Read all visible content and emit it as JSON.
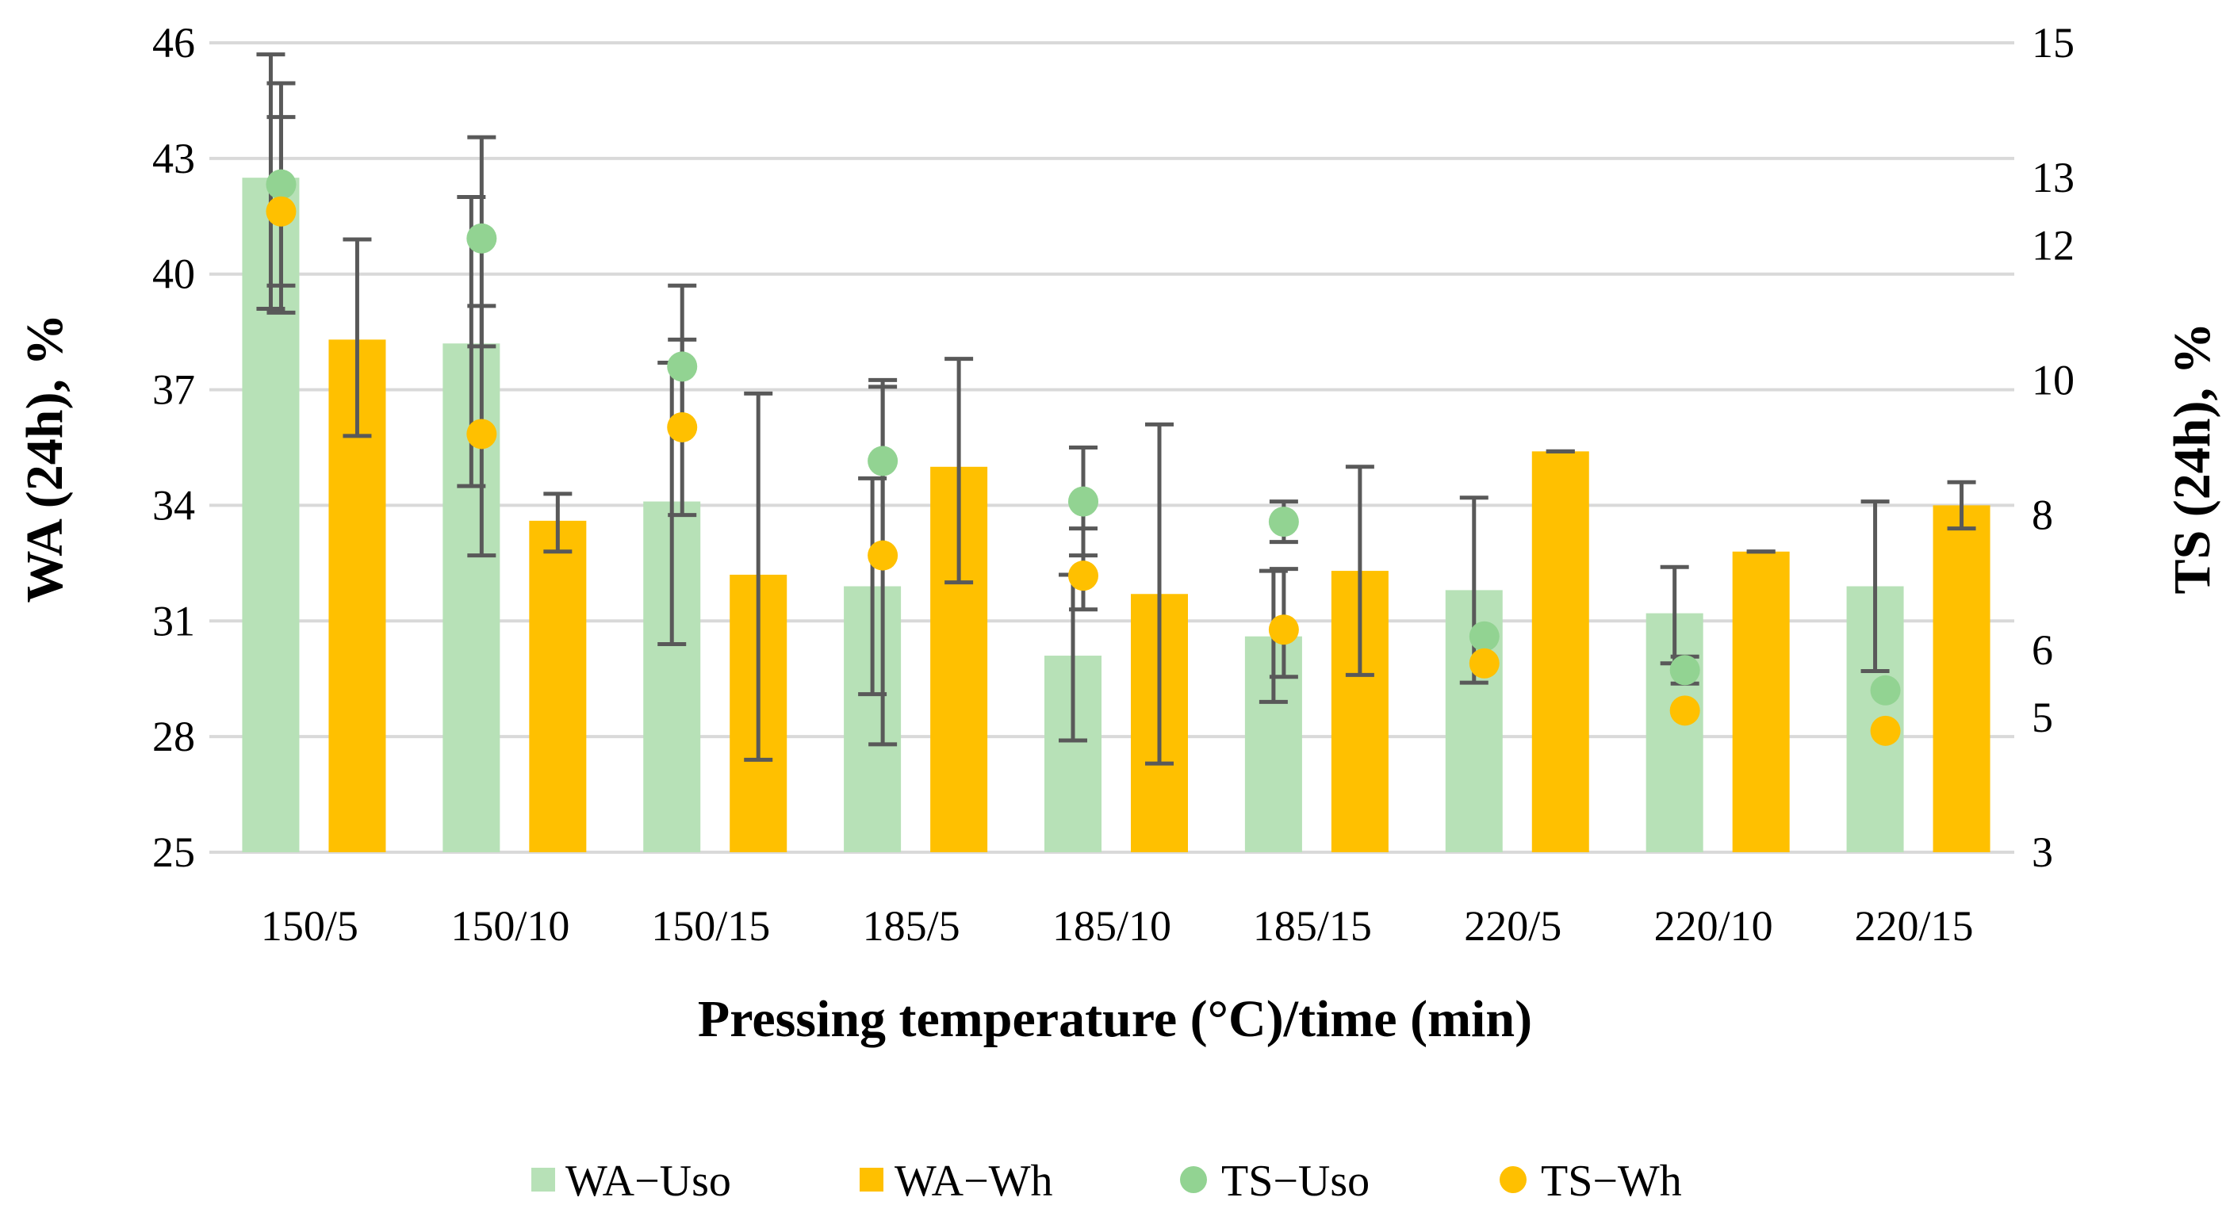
{
  "chart_data": {
    "type": "bar",
    "xlabel": "Pressing temperature (°C)/time (min)",
    "ylabel": "WA (24h), %",
    "y2label": "TS (24h), %",
    "ylim": [
      25,
      46
    ],
    "yticks": [
      25,
      28,
      31,
      34,
      37,
      40,
      43,
      46
    ],
    "y2lim": [
      3,
      15
    ],
    "y2ticks": [
      3,
      5,
      6,
      8,
      10,
      12,
      13,
      15
    ],
    "categories": [
      "150/5",
      "150/10",
      "150/15",
      "185/5",
      "185/10",
      "185/15",
      "220/5",
      "220/10",
      "220/15"
    ],
    "grid": true,
    "legend_position": "bottom",
    "series": [
      {
        "name": "WA−Uso",
        "kind": "bar",
        "axis": "left",
        "color": "#b7e1b7",
        "values": [
          42.5,
          38.2,
          34.1,
          31.9,
          30.1,
          30.6,
          31.8,
          31.2,
          31.9
        ],
        "err_high": [
          45.7,
          42.0,
          37.7,
          34.7,
          32.2,
          32.3,
          34.2,
          32.4,
          34.1
        ],
        "err_low": [
          39.1,
          34.5,
          30.4,
          29.1,
          27.9,
          28.9,
          29.4,
          29.9,
          29.7
        ]
      },
      {
        "name": "WA−Wh",
        "kind": "bar",
        "axis": "left",
        "color": "#ffc000",
        "values": [
          38.3,
          33.6,
          32.2,
          35.0,
          31.7,
          32.3,
          35.4,
          32.8,
          34.0
        ],
        "err_high": [
          40.9,
          34.3,
          36.9,
          37.8,
          36.1,
          35.0,
          35.4,
          32.8,
          34.6
        ],
        "err_low": [
          35.8,
          32.8,
          27.4,
          32.0,
          27.3,
          29.6,
          35.4,
          32.8,
          33.4
        ]
      },
      {
        "name": "TS−Uso",
        "kind": "scatter",
        "axis": "right",
        "color": "#92d392",
        "values": [
          12.9,
          12.1,
          10.2,
          8.8,
          8.2,
          7.9,
          6.2,
          5.7,
          5.4
        ],
        "err_high": [
          14.4,
          13.6,
          11.4,
          9.9,
          9.0,
          8.2,
          6.2,
          5.9,
          5.4
        ],
        "err_low": [
          11.4,
          10.5,
          9.3,
          7.4,
          7.4,
          7.6,
          6.2,
          5.5,
          5.4
        ]
      },
      {
        "name": "TS−Wh",
        "kind": "scatter",
        "axis": "right",
        "color": "#ffc000",
        "values": [
          12.5,
          9.2,
          9.3,
          7.4,
          7.1,
          6.3,
          5.8,
          5.1,
          4.8
        ],
        "err_high": [
          13.9,
          11.1,
          10.6,
          10.0,
          7.8,
          7.2,
          5.8,
          5.1,
          4.8
        ],
        "err_low": [
          11.0,
          7.4,
          8.0,
          4.6,
          6.6,
          5.6,
          5.8,
          5.1,
          4.8
        ]
      }
    ]
  }
}
